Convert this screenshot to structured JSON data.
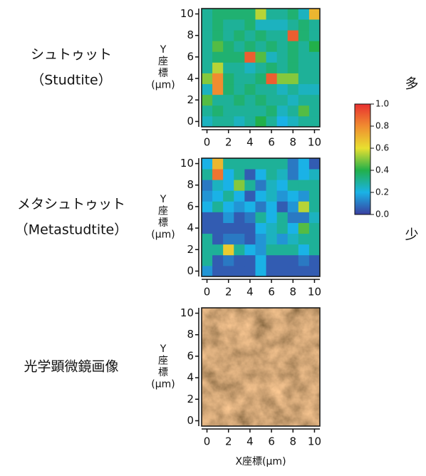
{
  "chart_data": [
    {
      "type": "heatmap",
      "label_lines": [
        "シュトゥット",
        "（Studtite）"
      ],
      "ylabel_lines": [
        "Y",
        "座",
        "標",
        "(µm)"
      ],
      "x": [
        0,
        1,
        2,
        3,
        4,
        5,
        6,
        7,
        8,
        9,
        10
      ],
      "y": [
        0,
        1,
        2,
        3,
        4,
        5,
        6,
        7,
        8,
        9,
        10
      ],
      "xlim": [
        -0.5,
        10.5
      ],
      "ylim": [
        -0.5,
        10.5
      ],
      "xticks": [
        0,
        2,
        4,
        6,
        8,
        10
      ],
      "yticks": [
        0,
        2,
        4,
        6,
        8,
        10
      ],
      "values": [
        [
          0.25,
          0.3,
          0.3,
          0.25,
          0.3,
          0.4,
          0.3,
          0.2,
          0.25,
          0.3,
          0.3
        ],
        [
          0.3,
          0.35,
          0.3,
          0.3,
          0.3,
          0.3,
          0.35,
          0.25,
          0.3,
          0.45,
          0.3
        ],
        [
          0.45,
          0.3,
          0.3,
          0.35,
          0.3,
          0.35,
          0.3,
          0.3,
          0.25,
          0.3,
          0.3
        ],
        [
          0.25,
          0.8,
          0.35,
          0.3,
          0.35,
          0.3,
          0.3,
          0.25,
          0.3,
          0.25,
          0.25
        ],
        [
          0.5,
          0.8,
          0.35,
          0.3,
          0.3,
          0.35,
          0.9,
          0.5,
          0.5,
          0.3,
          0.3
        ],
        [
          0.3,
          0.55,
          0.3,
          0.3,
          0.25,
          0.3,
          0.35,
          0.3,
          0.35,
          0.3,
          0.3
        ],
        [
          0.3,
          0.35,
          0.35,
          0.35,
          0.9,
          0.45,
          0.25,
          0.3,
          0.35,
          0.3,
          0.3
        ],
        [
          0.3,
          0.45,
          0.35,
          0.3,
          0.35,
          0.3,
          0.35,
          0.3,
          0.35,
          0.3,
          0.4
        ],
        [
          0.3,
          0.35,
          0.3,
          0.35,
          0.3,
          0.35,
          0.3,
          0.3,
          0.9,
          0.35,
          0.3
        ],
        [
          0.3,
          0.35,
          0.3,
          0.3,
          0.35,
          0.25,
          0.25,
          0.25,
          0.3,
          0.35,
          0.3
        ],
        [
          0.3,
          0.35,
          0.35,
          0.35,
          0.35,
          0.55,
          0.3,
          0.3,
          0.35,
          0.25,
          0.7
        ]
      ]
    },
    {
      "type": "heatmap",
      "label_lines": [
        "メタシュトゥット",
        "（Metastudtite）"
      ],
      "ylabel_lines": [
        "Y",
        "座",
        "標",
        "(µm)"
      ],
      "x": [
        0,
        1,
        2,
        3,
        4,
        5,
        6,
        7,
        8,
        9,
        10
      ],
      "y": [
        0,
        1,
        2,
        3,
        4,
        5,
        6,
        7,
        8,
        9,
        10
      ],
      "xlim": [
        -0.5,
        10.5
      ],
      "ylim": [
        -0.5,
        10.5
      ],
      "xticks": [
        0,
        2,
        4,
        6,
        8,
        10
      ],
      "yticks": [
        0,
        2,
        4,
        6,
        8,
        10
      ],
      "values": [
        [
          0.15,
          0.05,
          0.05,
          0.05,
          0.05,
          0.2,
          0.05,
          0.05,
          0.05,
          0.05,
          0.05
        ],
        [
          0.3,
          0.05,
          0.1,
          0.05,
          0.05,
          0.2,
          0.05,
          0.05,
          0.05,
          0.1,
          0.05
        ],
        [
          0.3,
          0.3,
          0.65,
          0.3,
          0.2,
          0.15,
          0.3,
          0.3,
          0.3,
          0.2,
          0.3
        ],
        [
          0.3,
          0.05,
          0.1,
          0.1,
          0.05,
          0.15,
          0.25,
          0.15,
          0.25,
          0.3,
          0.3
        ],
        [
          0.05,
          0.05,
          0.05,
          0.05,
          0.05,
          0.2,
          0.25,
          0.3,
          0.2,
          0.45,
          0.3
        ],
        [
          0.05,
          0.05,
          0.15,
          0.05,
          0.1,
          0.3,
          0.2,
          0.3,
          0.1,
          0.1,
          0.25
        ],
        [
          0.2,
          0.3,
          0.2,
          0.15,
          0.2,
          0.1,
          0.2,
          0.05,
          0.15,
          0.55,
          0.3
        ],
        [
          0.15,
          0.2,
          0.3,
          0.2,
          0.05,
          0.2,
          0.25,
          0.15,
          0.2,
          0.15,
          0.3
        ],
        [
          0.1,
          0.25,
          0.2,
          0.5,
          0.3,
          0.1,
          0.25,
          0.2,
          0.3,
          0.3,
          0.3
        ],
        [
          0.3,
          0.85,
          0.2,
          0.3,
          0.05,
          0.2,
          0.3,
          0.25,
          0.1,
          0.2,
          0.25
        ],
        [
          0.2,
          0.7,
          0.3,
          0.3,
          0.3,
          0.3,
          0.3,
          0.3,
          0.1,
          0.2,
          0.05
        ]
      ]
    },
    {
      "type": "image",
      "label_lines": [
        "光学顕微鏡画像"
      ],
      "ylabel_lines": [
        "Y",
        "座",
        "標",
        "(µm)"
      ],
      "xlim": [
        -0.5,
        10.5
      ],
      "ylim": [
        -0.5,
        10.5
      ],
      "xticks": [
        0,
        2,
        4,
        6,
        8,
        10
      ],
      "yticks": [
        0,
        2,
        4,
        6,
        8,
        10
      ],
      "xlabel": "X座標(µm)"
    }
  ],
  "colorbar": {
    "zlim": [
      0,
      1
    ],
    "zticks": [
      {
        "value": 0,
        "label": "0.0"
      },
      {
        "value": 0.2,
        "label": "0.2"
      },
      {
        "value": 0.4,
        "label": "0.4"
      },
      {
        "value": 0.6,
        "label": "0.6"
      },
      {
        "value": 0.8,
        "label": "0.8"
      },
      {
        "value": 1,
        "label": "1.0"
      }
    ],
    "colormap": [
      "#3a3fa0",
      "#1ab2e6",
      "#22b04a",
      "#e8e030",
      "#f08c30",
      "#e83030"
    ],
    "high_label": "多",
    "low_label": "少"
  }
}
